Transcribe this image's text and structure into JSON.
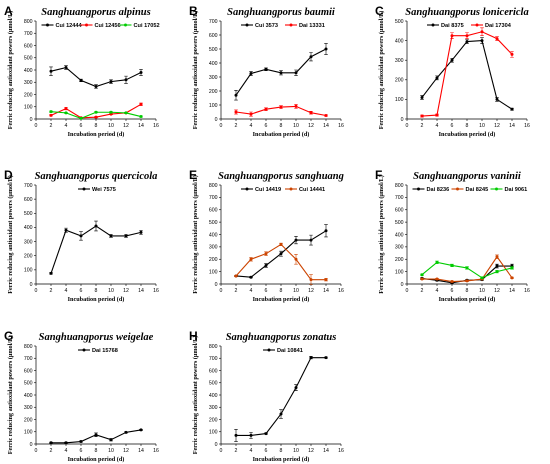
{
  "chart_data": [
    {
      "type": "line",
      "panel": "A",
      "title": "Sanghuangporus alpinus",
      "xlabel": "Incubation period (d)",
      "ylabel": "Ferric reducing antioxidant powers (μmol/L)",
      "xlim": [
        0,
        16
      ],
      "ylim": [
        0,
        800
      ],
      "x_ticks": [
        0,
        2,
        4,
        6,
        8,
        10,
        12,
        14,
        16
      ],
      "y_ticks": [
        0,
        100,
        200,
        300,
        400,
        500,
        600,
        700,
        800
      ],
      "legend_position": "top",
      "series": [
        {
          "name": "Cui 12444",
          "color": "#000000",
          "x": [
            2,
            4,
            6,
            8,
            10,
            12,
            14
          ],
          "y": [
            390,
            420,
            315,
            265,
            305,
            320,
            380
          ],
          "err": [
            35,
            15,
            10,
            15,
            15,
            30,
            25
          ]
        },
        {
          "name": "Cui 12456",
          "color": "#ff0000",
          "x": [
            2,
            4,
            6,
            8,
            10,
            12,
            14
          ],
          "y": [
            30,
            85,
            10,
            15,
            40,
            50,
            120
          ],
          "err": [
            5,
            10,
            5,
            5,
            5,
            5,
            10
          ]
        },
        {
          "name": "Cui 17052",
          "color": "#00cc00",
          "x": [
            2,
            4,
            6,
            8,
            10,
            12,
            14
          ],
          "y": [
            60,
            50,
            5,
            55,
            55,
            50,
            20
          ],
          "err": [
            5,
            5,
            3,
            5,
            5,
            5,
            5
          ]
        }
      ]
    },
    {
      "type": "line",
      "panel": "B",
      "title": "Sanghuangporus baumii",
      "xlabel": "Incubation period (d)",
      "ylabel": "Ferric reducing antioxidant powers (μmol/L)",
      "xlim": [
        0,
        16
      ],
      "ylim": [
        0,
        700
      ],
      "x_ticks": [
        0,
        2,
        4,
        6,
        8,
        10,
        12,
        14,
        16
      ],
      "y_ticks": [
        0,
        100,
        200,
        300,
        400,
        500,
        600,
        700
      ],
      "legend_position": "top",
      "series": [
        {
          "name": "Cui 3573",
          "color": "#000000",
          "x": [
            2,
            4,
            6,
            8,
            10,
            12,
            14
          ],
          "y": [
            170,
            325,
            355,
            330,
            330,
            445,
            500
          ],
          "err": [
            35,
            15,
            10,
            15,
            20,
            30,
            40
          ]
        },
        {
          "name": "Dai 13331",
          "color": "#ff0000",
          "x": [
            2,
            4,
            6,
            8,
            10,
            12,
            14
          ],
          "y": [
            50,
            35,
            70,
            85,
            90,
            45,
            25
          ],
          "err": [
            15,
            15,
            10,
            10,
            15,
            10,
            5
          ]
        }
      ]
    },
    {
      "type": "line",
      "panel": "C",
      "title": "Sanghuangporus lonicericla",
      "xlabel": "Incubation period (d)",
      "ylabel": "Ferric reducing antioxidant powers (μmol/L)",
      "xlim": [
        0,
        16
      ],
      "ylim": [
        0,
        500
      ],
      "x_ticks": [
        0,
        2,
        4,
        6,
        8,
        10,
        12,
        14,
        16
      ],
      "y_ticks": [
        0,
        100,
        200,
        300,
        400,
        500
      ],
      "legend_position": "top",
      "series": [
        {
          "name": "Dai 8375",
          "color": "#000000",
          "x": [
            2,
            4,
            6,
            8,
            10,
            12,
            14
          ],
          "y": [
            110,
            210,
            300,
            395,
            400,
            100,
            50
          ],
          "err": [
            10,
            10,
            10,
            10,
            15,
            10,
            5
          ]
        },
        {
          "name": "Dai 17304",
          "color": "#ff0000",
          "x": [
            2,
            4,
            6,
            8,
            10,
            12,
            14
          ],
          "y": [
            15,
            20,
            425,
            425,
            445,
            410,
            330
          ],
          "err": [
            5,
            5,
            15,
            15,
            20,
            10,
            15
          ]
        }
      ]
    },
    {
      "type": "line",
      "panel": "D",
      "title": "Sanghuangporus quercicola",
      "xlabel": "Incubation period (d)",
      "ylabel": "Ferric reducing antioxidant powers (μmol/L)",
      "xlim": [
        0,
        16
      ],
      "ylim": [
        0,
        700
      ],
      "x_ticks": [
        0,
        2,
        4,
        6,
        8,
        10,
        12,
        14,
        16
      ],
      "y_ticks": [
        0,
        100,
        200,
        300,
        400,
        500,
        600,
        700
      ],
      "legend_position": "top",
      "series": [
        {
          "name": "Wei 7575",
          "color": "#000000",
          "x": [
            2,
            4,
            6,
            8,
            10,
            12,
            14
          ],
          "y": [
            75,
            380,
            340,
            410,
            340,
            340,
            365
          ],
          "err": [
            5,
            15,
            30,
            35,
            10,
            10,
            15
          ]
        }
      ]
    },
    {
      "type": "line",
      "panel": "E",
      "title": "Sanghuangporus sanghuang",
      "xlabel": "Incubation period (d)",
      "ylabel": "Ferric reducing antioxidant powers (μmol/L)",
      "xlim": [
        0,
        16
      ],
      "ylim": [
        0,
        800
      ],
      "x_ticks": [
        0,
        2,
        4,
        6,
        8,
        10,
        12,
        14,
        16
      ],
      "y_ticks": [
        0,
        100,
        200,
        300,
        400,
        500,
        600,
        700,
        800
      ],
      "legend_position": "top",
      "series": [
        {
          "name": "Cui 14419",
          "color": "#000000",
          "x": [
            2,
            4,
            6,
            8,
            10,
            12,
            14
          ],
          "y": [
            65,
            55,
            150,
            245,
            355,
            355,
            430
          ],
          "err": [
            5,
            5,
            15,
            20,
            30,
            40,
            50
          ]
        },
        {
          "name": "Cui 14441",
          "color": "#cc4400",
          "x": [
            2,
            4,
            6,
            8,
            10,
            12,
            14
          ],
          "y": [
            65,
            200,
            245,
            320,
            200,
            35,
            35
          ],
          "err": [
            5,
            15,
            15,
            10,
            40,
            40,
            10
          ]
        }
      ]
    },
    {
      "type": "line",
      "panel": "F",
      "title": "Sanghuangporus vaninii",
      "xlabel": "Incubation period (d)",
      "ylabel": "Ferric reducing antioxidant powers (μmol/L)",
      "xlim": [
        0,
        16
      ],
      "ylim": [
        0,
        800
      ],
      "x_ticks": [
        0,
        2,
        4,
        6,
        8,
        10,
        12,
        14,
        16
      ],
      "y_ticks": [
        0,
        100,
        200,
        300,
        400,
        500,
        600,
        700,
        800
      ],
      "legend_position": "top",
      "series": [
        {
          "name": "Dai 8236",
          "color": "#000000",
          "x": [
            2,
            4,
            6,
            8,
            10,
            12,
            14
          ],
          "y": [
            45,
            30,
            10,
            30,
            35,
            145,
            145
          ],
          "err": [
            5,
            5,
            5,
            5,
            5,
            15,
            15
          ]
        },
        {
          "name": "Dai 8245",
          "color": "#cc4400",
          "x": [
            2,
            4,
            6,
            8,
            10,
            12,
            14
          ],
          "y": [
            40,
            40,
            20,
            25,
            40,
            220,
            50
          ],
          "err": [
            5,
            5,
            5,
            5,
            5,
            15,
            5
          ]
        },
        {
          "name": "Dai 9061",
          "color": "#00cc00",
          "x": [
            2,
            4,
            6,
            8,
            10,
            12,
            14
          ],
          "y": [
            75,
            175,
            150,
            130,
            50,
            100,
            130
          ],
          "err": [
            5,
            10,
            10,
            10,
            5,
            10,
            10
          ]
        }
      ]
    },
    {
      "type": "line",
      "panel": "G",
      "title": "Sanghuangporus weigelae",
      "xlabel": "Incubation period (d)",
      "ylabel": "Ferric reducing antioxidant powers (μmol/L)",
      "xlim": [
        0,
        16
      ],
      "ylim": [
        0,
        800
      ],
      "x_ticks": [
        0,
        2,
        4,
        6,
        8,
        10,
        12,
        14,
        16
      ],
      "y_ticks": [
        0,
        100,
        200,
        300,
        400,
        500,
        600,
        700,
        800
      ],
      "legend_position": "top",
      "series": [
        {
          "name": "Dai 15768",
          "color": "#000000",
          "x": [
            2,
            4,
            6,
            8,
            10,
            12,
            14
          ],
          "y": [
            10,
            10,
            20,
            75,
            35,
            95,
            115
          ],
          "err": [
            5,
            5,
            5,
            15,
            10,
            5,
            5
          ]
        }
      ]
    },
    {
      "type": "line",
      "panel": "H",
      "title": "Sanghuangporus zonatus",
      "xlabel": "Incubation period (d)",
      "ylabel": "Ferric reducing antioxidant powers (μmol/L)",
      "xlim": [
        0,
        16
      ],
      "ylim": [
        0,
        800
      ],
      "x_ticks": [
        0,
        2,
        4,
        6,
        8,
        10,
        12,
        14,
        16
      ],
      "y_ticks": [
        0,
        100,
        200,
        300,
        400,
        500,
        600,
        700,
        800
      ],
      "legend_position": "top",
      "series": [
        {
          "name": "Dai 10841",
          "color": "#000000",
          "x": [
            2,
            4,
            6,
            8,
            10,
            12,
            14
          ],
          "y": [
            70,
            70,
            85,
            245,
            460,
            705,
            705
          ],
          "err": [
            50,
            25,
            5,
            35,
            25,
            10,
            5
          ]
        }
      ]
    }
  ]
}
